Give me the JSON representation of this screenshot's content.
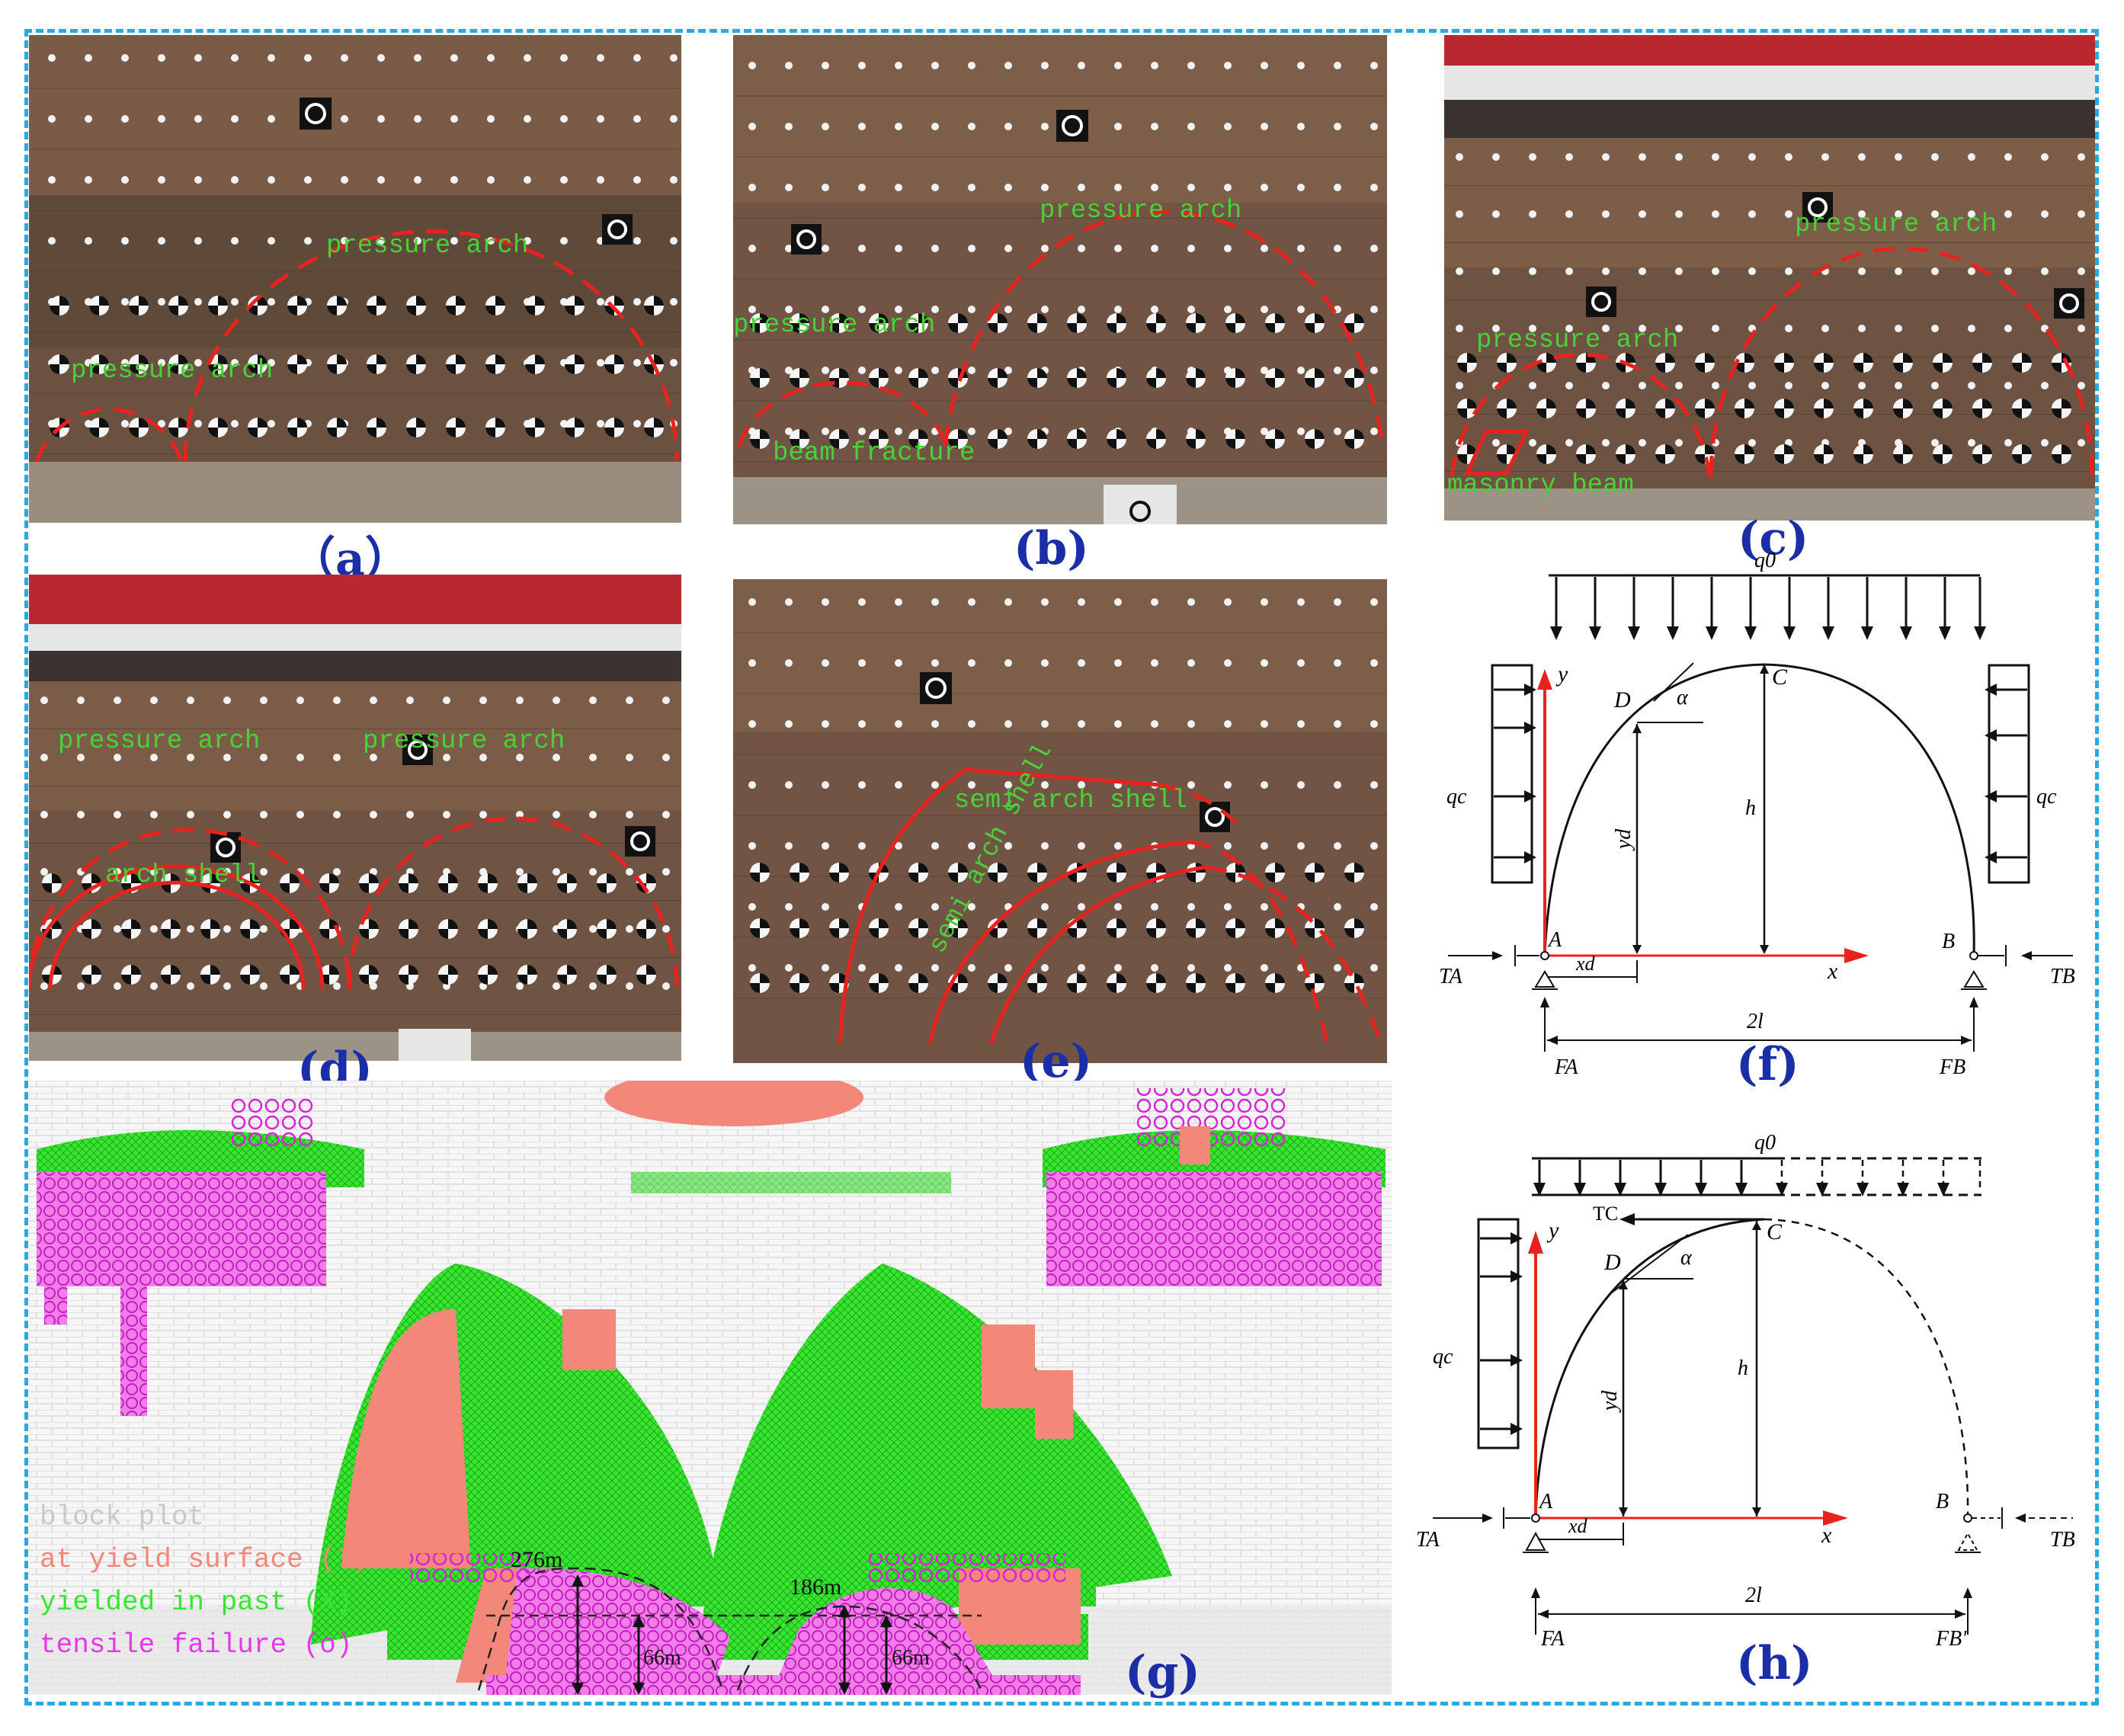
{
  "panels": {
    "a": {
      "label": "（a）",
      "arches": [
        "pressure arch",
        "pressure arch"
      ]
    },
    "b": {
      "label": "(b)",
      "arches": [
        "pressure arch",
        "pressure arch"
      ],
      "note": "beam fracture"
    },
    "c": {
      "label": "(c)",
      "arches": [
        "pressure arch",
        "pressure arch"
      ],
      "note": "masonry beam"
    },
    "d": {
      "label": "(d)",
      "arches": [
        "pressure arch",
        "pressure arch"
      ],
      "note": "arch shell"
    },
    "e": {
      "label": "(e)",
      "note1": "semi arch shell",
      "note2": "semi arch shell"
    },
    "f": {
      "label": "(f)",
      "q0": "q0",
      "qc_left": "qc",
      "qc_right": "qc",
      "pt_D": "D",
      "pt_C": "C",
      "pt_A": "A",
      "pt_B": "B",
      "alpha": "α",
      "y": "y",
      "x": "x",
      "h": "h",
      "yd": "yd",
      "xd": "xd",
      "TA": "TA",
      "TB": "TB",
      "FA": "FA",
      "FB": "FB",
      "span": "2l"
    },
    "g": {
      "label": "(g)",
      "legend": [
        "block plot",
        "at yield surface (*)",
        "yielded in past (X)",
        "tensile failure (o)"
      ],
      "dims": [
        "276m",
        "66m",
        "186m",
        "66m"
      ]
    },
    "h": {
      "label": "(h)",
      "q0": "q0",
      "qc": "qc",
      "TC": "TC",
      "pt_D": "D",
      "pt_C": "C",
      "pt_A": "A",
      "pt_B": "B",
      "alpha": "α",
      "y": "y",
      "x": "x",
      "h": "h",
      "yd": "yd",
      "xd": "xd",
      "TA": "TA",
      "TB": "TB",
      "FA": "FA",
      "FB": "FB'",
      "span": "2l"
    }
  },
  "colors": {
    "frame": "#29a9e0",
    "arch_red": "#e8231f",
    "green_text": "#49d13a",
    "label_blue": "#1a2ea8",
    "salmon": "#f2877a",
    "green": "#37e62f",
    "magenta": "#e23be6"
  }
}
